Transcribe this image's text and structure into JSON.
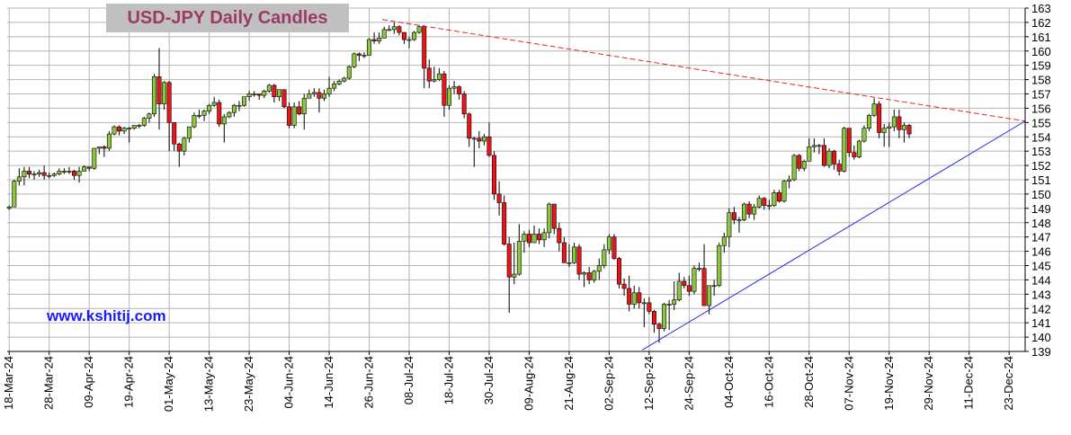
{
  "chart_data": {
    "type": "candlestick",
    "title": "USD-JPY Daily Candles",
    "watermark": "www.kshitij.com",
    "up_color": "#8cc63f",
    "down_color": "#e8151b",
    "grid": true,
    "ylim": [
      139,
      163
    ],
    "yticks": [
      139,
      140,
      141,
      142,
      143,
      144,
      145,
      146,
      147,
      148,
      149,
      150,
      151,
      152,
      153,
      154,
      155,
      156,
      157,
      158,
      159,
      160,
      161,
      162,
      163
    ],
    "xlim": [
      -0.4,
      203.2
    ],
    "xticks": [
      {
        "value": 0,
        "label": "18-Mar-24"
      },
      {
        "value": 8,
        "label": "28-Mar-24"
      },
      {
        "value": 16,
        "label": "09-Apr-24"
      },
      {
        "value": 24,
        "label": "19-Apr-24"
      },
      {
        "value": 32,
        "label": "01-May-24"
      },
      {
        "value": 40,
        "label": "13-May-24"
      },
      {
        "value": 48,
        "label": "23-May-24"
      },
      {
        "value": 56,
        "label": "04-Jun-24"
      },
      {
        "value": 64,
        "label": "14-Jun-24"
      },
      {
        "value": 72,
        "label": "26-Jun-24"
      },
      {
        "value": 80,
        "label": "08-Jul-24"
      },
      {
        "value": 88,
        "label": "18-Jul-24"
      },
      {
        "value": 96,
        "label": "30-Jul-24"
      },
      {
        "value": 104,
        "label": "09-Aug-24"
      },
      {
        "value": 112,
        "label": "21-Aug-24"
      },
      {
        "value": 120,
        "label": "02-Sep-24"
      },
      {
        "value": 128,
        "label": "12-Sep-24"
      },
      {
        "value": 136,
        "label": "24-Sep-24"
      },
      {
        "value": 144,
        "label": "04-Oct-24"
      },
      {
        "value": 152,
        "label": "16-Oct-24"
      },
      {
        "value": 160,
        "label": "28-Oct-24"
      },
      {
        "value": 168,
        "label": "07-Nov-24"
      },
      {
        "value": 176,
        "label": "19-Nov-24"
      },
      {
        "value": 184,
        "label": "29-Nov-24"
      },
      {
        "value": 192,
        "label": "11-Dec-24"
      },
      {
        "value": 200,
        "label": "23-Dec-24"
      }
    ],
    "x": [
      0,
      1,
      2,
      3,
      4,
      5,
      6,
      7,
      8,
      9,
      10,
      11,
      12,
      13,
      14,
      15,
      16,
      17,
      18,
      19,
      20,
      21,
      22,
      23,
      24,
      25,
      26,
      27,
      28,
      29,
      30,
      31,
      32,
      33,
      34,
      35,
      36,
      37,
      38,
      39,
      40,
      41,
      42,
      43,
      44,
      45,
      46,
      47,
      48,
      49,
      50,
      51,
      52,
      53,
      54,
      55,
      56,
      57,
      58,
      59,
      60,
      61,
      62,
      63,
      64,
      65,
      66,
      67,
      68,
      69,
      70,
      71,
      72,
      73,
      74,
      75,
      76,
      77,
      78,
      79,
      80,
      81,
      82,
      83,
      84,
      85,
      86,
      87,
      88,
      89,
      90,
      91,
      92,
      93,
      94,
      95,
      96,
      97,
      98,
      99,
      100,
      101,
      102,
      103,
      104,
      105,
      106,
      107,
      108,
      109,
      110,
      111,
      112,
      113,
      114,
      115,
      116,
      117,
      118,
      119,
      120,
      121,
      122,
      123,
      124,
      125,
      126,
      127,
      128,
      129,
      130,
      131,
      132,
      133,
      134,
      135,
      136,
      137,
      138,
      139,
      140,
      141,
      142,
      143,
      144,
      145,
      146,
      147,
      148,
      149,
      150,
      151,
      152,
      153,
      154,
      155,
      156,
      157,
      158,
      159,
      160,
      161,
      162,
      163,
      164,
      165,
      166,
      167,
      168,
      169,
      170,
      171,
      172,
      173,
      174,
      175,
      176,
      177,
      178,
      179,
      180
    ],
    "open": [
      149.0,
      149.1,
      150.9,
      151.2,
      151.6,
      151.4,
      151.4,
      151.5,
      151.3,
      151.3,
      151.4,
      151.6,
      151.6,
      151.6,
      151.3,
      151.6,
      151.9,
      151.8,
      153.2,
      153.3,
      153.2,
      154.2,
      154.7,
      154.4,
      154.6,
      154.6,
      154.8,
      154.8,
      155.3,
      155.6,
      158.2,
      156.3,
      157.8,
      155.0,
      153.5,
      153.0,
      153.9,
      154.7,
      155.5,
      155.5,
      155.8,
      156.2,
      156.4,
      154.9,
      155.4,
      155.7,
      156.2,
      156.2,
      156.8,
      157.0,
      157.0,
      156.9,
      157.2,
      157.6,
      156.8,
      157.3,
      156.1,
      154.8,
      156.1,
      155.6,
      156.7,
      157.0,
      157.1,
      156.7,
      157.0,
      157.4,
      157.7,
      157.9,
      158.1,
      158.9,
      159.8,
      159.7,
      159.7,
      160.8,
      160.7,
      160.9,
      161.5,
      161.5,
      161.7,
      161.3,
      160.8,
      160.8,
      161.3,
      161.7,
      158.8,
      157.9,
      158.0,
      158.4,
      156.2,
      157.4,
      157.5,
      157.0,
      155.6,
      153.9,
      153.9,
      153.7,
      154.0,
      152.7,
      150.0,
      149.4,
      146.5,
      144.2,
      144.4,
      146.7,
      147.2,
      146.6,
      147.2,
      146.8,
      147.3,
      149.3,
      147.6,
      146.6,
      145.2,
      145.2,
      146.3,
      144.4,
      144.5,
      144.0,
      144.6,
      145.0,
      146.1,
      147.0,
      145.5,
      143.7,
      143.4,
      142.3,
      143.1,
      142.4,
      142.4,
      141.8,
      140.9,
      140.6,
      142.3,
      142.3,
      142.6,
      143.9,
      143.6,
      143.2,
      144.8,
      144.8,
      142.2,
      143.6,
      143.6,
      146.4,
      147.0,
      148.7,
      148.2,
      148.2,
      149.3,
      148.6,
      149.1,
      149.7,
      149.2,
      149.2,
      150.1,
      149.5,
      150.9,
      151.0,
      152.7,
      151.8,
      152.3,
      153.3,
      153.4,
      153.4,
      152.0,
      153.0,
      152.1,
      151.6,
      154.6,
      152.9,
      152.6,
      153.7,
      154.6,
      155.5,
      156.3,
      154.3,
      154.6,
      154.7,
      155.4,
      154.5,
      154.8
    ],
    "high": [
      149.2,
      151.0,
      151.8,
      151.9,
      151.9,
      151.6,
      151.7,
      152.0,
      151.5,
      151.5,
      151.8,
      151.8,
      151.9,
      151.7,
      151.9,
      152.0,
      151.9,
      153.2,
      153.3,
      153.4,
      154.4,
      154.8,
      154.8,
      154.7,
      154.7,
      154.8,
      154.9,
      155.4,
      155.7,
      158.4,
      160.2,
      157.9,
      157.9,
      155.0,
      153.6,
      154.0,
      154.7,
      155.7,
      155.9,
      155.9,
      156.3,
      156.8,
      156.6,
      155.6,
      155.8,
      156.3,
      156.5,
      156.8,
      157.2,
      157.2,
      157.0,
      157.3,
      157.7,
      157.7,
      157.3,
      157.3,
      156.4,
      156.4,
      156.5,
      157.0,
      157.3,
      157.4,
      157.4,
      157.3,
      158.2,
      157.9,
      158.0,
      158.2,
      159.0,
      159.9,
      159.9,
      159.9,
      160.9,
      161.3,
      161.3,
      161.7,
      161.8,
      162.0,
      161.8,
      161.3,
      161.0,
      161.4,
      161.8,
      161.8,
      159.4,
      158.9,
      158.8,
      158.6,
      157.6,
      157.9,
      157.6,
      157.2,
      155.7,
      154.0,
      154.4,
      154.2,
      155.0,
      153.0,
      150.9,
      149.9,
      147.0,
      146.6,
      147.9,
      147.4,
      147.5,
      147.8,
      147.6,
      147.6,
      149.4,
      149.3,
      148.0,
      147.0,
      146.5,
      146.6,
      146.5,
      144.6,
      144.9,
      144.7,
      145.5,
      146.5,
      147.2,
      147.2,
      145.6,
      144.1,
      144.3,
      143.6,
      143.5,
      142.7,
      142.8,
      141.9,
      141.0,
      142.4,
      142.6,
      143.9,
      144.5,
      144.2,
      144.3,
      145.0,
      145.2,
      146.5,
      143.6,
      144.0,
      146.6,
      147.3,
      149.0,
      149.1,
      148.4,
      149.4,
      149.5,
      149.3,
      149.9,
      149.8,
      149.6,
      150.3,
      150.3,
      151.0,
      151.3,
      152.8,
      152.8,
      152.4,
      153.9,
      153.9,
      153.5,
      153.9,
      153.2,
      153.1,
      152.4,
      154.7,
      154.6,
      153.4,
      153.8,
      154.8,
      155.6,
      156.7,
      156.5,
      154.9,
      155.0,
      155.9,
      155.9,
      155.0,
      154.9
    ],
    "low": [
      148.9,
      149.1,
      150.6,
      150.6,
      151.1,
      151.0,
      151.2,
      151.0,
      151.1,
      151.2,
      151.3,
      151.4,
      151.4,
      151.0,
      150.8,
      151.6,
      151.6,
      151.7,
      152.8,
      152.6,
      153.0,
      154.1,
      154.1,
      154.2,
      153.6,
      154.5,
      154.6,
      154.7,
      155.0,
      155.4,
      154.5,
      155.9,
      153.0,
      153.0,
      151.9,
      152.7,
      153.6,
      154.6,
      155.3,
      155.1,
      155.6,
      156.1,
      154.7,
      153.6,
      155.3,
      155.4,
      155.8,
      156.1,
      156.5,
      156.8,
      156.6,
      156.7,
      157.1,
      156.4,
      156.5,
      156.0,
      154.6,
      154.6,
      155.5,
      154.5,
      156.7,
      156.8,
      155.7,
      156.5,
      156.8,
      157.2,
      157.6,
      157.8,
      158.0,
      158.8,
      159.3,
      159.5,
      159.7,
      160.5,
      160.5,
      160.9,
      161.4,
      161.2,
      161.1,
      160.5,
      160.2,
      160.7,
      161.2,
      157.4,
      157.4,
      157.8,
      157.9,
      155.4,
      155.9,
      157.0,
      156.6,
      155.3,
      153.3,
      151.9,
      153.2,
      153.4,
      152.6,
      149.6,
      148.5,
      146.4,
      141.7,
      143.7,
      144.3,
      145.9,
      146.3,
      146.6,
      146.5,
      146.3,
      146.9,
      147.2,
      146.0,
      145.2,
      144.9,
      145.1,
      144.0,
      143.5,
      143.7,
      143.8,
      144.0,
      144.8,
      145.8,
      145.4,
      143.4,
      142.9,
      141.8,
      142.0,
      142.0,
      140.7,
      141.6,
      140.3,
      139.6,
      140.4,
      140.5,
      141.9,
      142.5,
      143.4,
      142.9,
      143.0,
      144.6,
      142.2,
      141.6,
      142.9,
      143.5,
      145.9,
      146.3,
      147.9,
      147.3,
      148.1,
      148.3,
      148.2,
      149.0,
      148.9,
      148.9,
      149.1,
      149.4,
      149.4,
      150.4,
      150.9,
      151.6,
      151.6,
      152.3,
      152.9,
      152.8,
      151.9,
      151.8,
      151.7,
      151.3,
      151.5,
      152.6,
      152.4,
      152.5,
      153.6,
      154.4,
      155.4,
      153.9,
      153.3,
      153.3,
      154.4,
      153.9,
      153.6,
      153.9
    ],
    "close": [
      149.1,
      150.9,
      151.2,
      151.6,
      151.4,
      151.4,
      151.5,
      151.3,
      151.3,
      151.4,
      151.6,
      151.6,
      151.6,
      151.3,
      151.6,
      151.9,
      151.8,
      153.2,
      153.3,
      153.2,
      154.2,
      154.7,
      154.4,
      154.6,
      154.6,
      154.8,
      154.8,
      155.3,
      155.6,
      158.2,
      156.3,
      157.8,
      155.0,
      153.5,
      153.0,
      153.9,
      154.7,
      155.5,
      155.5,
      155.8,
      156.2,
      156.4,
      154.9,
      155.4,
      155.7,
      156.2,
      156.2,
      156.8,
      157.0,
      157.0,
      156.9,
      157.2,
      157.6,
      156.8,
      157.3,
      156.1,
      154.8,
      156.1,
      155.6,
      156.7,
      157.0,
      157.1,
      156.7,
      157.0,
      157.4,
      157.7,
      157.9,
      158.1,
      158.9,
      159.8,
      159.7,
      159.7,
      160.8,
      160.7,
      160.9,
      161.5,
      161.5,
      161.7,
      161.3,
      160.8,
      160.8,
      161.3,
      161.7,
      158.8,
      157.9,
      158.0,
      158.4,
      156.2,
      157.4,
      157.5,
      157.0,
      155.6,
      153.9,
      153.9,
      153.7,
      154.0,
      152.7,
      150.0,
      149.4,
      146.5,
      144.2,
      144.4,
      146.7,
      147.2,
      146.6,
      147.2,
      146.8,
      147.3,
      149.3,
      147.6,
      146.6,
      145.2,
      145.2,
      146.3,
      144.4,
      144.5,
      144.0,
      144.6,
      145.0,
      146.1,
      147.0,
      145.5,
      143.7,
      143.4,
      142.3,
      143.1,
      142.4,
      142.4,
      141.8,
      140.9,
      140.6,
      142.3,
      142.3,
      142.6,
      143.9,
      143.6,
      143.2,
      144.8,
      144.8,
      142.2,
      143.6,
      143.6,
      146.4,
      147.0,
      148.7,
      148.2,
      148.2,
      149.3,
      148.6,
      149.1,
      149.7,
      149.2,
      149.2,
      150.1,
      149.5,
      150.9,
      151.0,
      152.7,
      151.8,
      152.3,
      153.3,
      153.4,
      153.4,
      152.0,
      153.0,
      152.1,
      151.6,
      154.6,
      152.9,
      152.6,
      153.7,
      154.6,
      155.5,
      156.3,
      154.3,
      154.6,
      154.7,
      155.4,
      154.5,
      154.8,
      154.2
    ],
    "trendlines": [
      {
        "color": "#e8242a",
        "dashed": true,
        "x": [
          74.6,
          203.2
        ],
        "y": [
          162.2,
          155.1
        ]
      },
      {
        "color": "#2a2ae0",
        "dashed": false,
        "x": [
          126.6,
          203.2
        ],
        "y": [
          139.1,
          155.1
        ]
      }
    ]
  }
}
